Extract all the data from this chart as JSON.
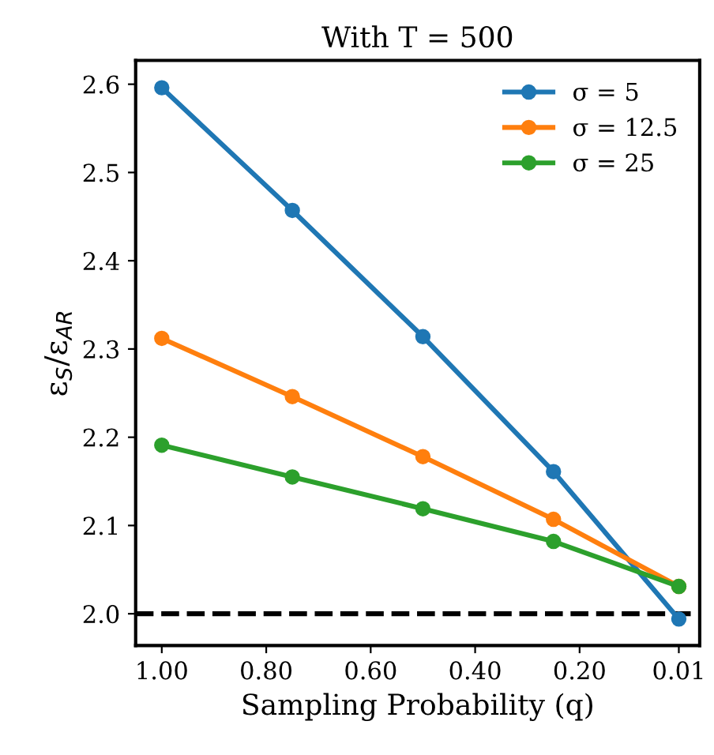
{
  "chart_data": {
    "type": "line",
    "title": "With T = 500",
    "xlabel": "Sampling Probability (q)",
    "ylabel": "ε$_{S}$/ε$_{AR}$",
    "x": [
      1.0,
      0.75,
      0.5,
      0.25,
      0.01
    ],
    "series": [
      {
        "name": "σ = 5",
        "color": "#1f77b4",
        "values": [
          2.596,
          2.457,
          2.314,
          2.161,
          1.994
        ]
      },
      {
        "name": "σ = 12.5",
        "color": "#ff7f0e",
        "values": [
          2.312,
          2.246,
          2.178,
          2.107,
          2.031
        ]
      },
      {
        "name": "σ = 25",
        "color": "#2ca02c",
        "values": [
          2.191,
          2.155,
          2.119,
          2.082,
          2.031
        ]
      }
    ],
    "xlim": [
      1.05,
      -0.03
    ],
    "ylim": [
      1.964,
      2.627
    ],
    "xticks": [
      {
        "value": 1.0,
        "label": "1.00"
      },
      {
        "value": 0.8,
        "label": "0.80"
      },
      {
        "value": 0.6,
        "label": "0.60"
      },
      {
        "value": 0.4,
        "label": "0.40"
      },
      {
        "value": 0.2,
        "label": "0.20"
      },
      {
        "value": 0.01,
        "label": "0.01"
      }
    ],
    "yticks": [
      {
        "value": 2.0,
        "label": "2.0"
      },
      2.1,
      2.2,
      2.3,
      2.4,
      2.5,
      2.6
    ],
    "ref_lines": [
      {
        "axis": "y",
        "value": 2.0,
        "color": "#000000",
        "line_style": "dashed"
      }
    ],
    "marker": "circle",
    "line_style": "solid",
    "legend": "top right",
    "grid": false
  }
}
